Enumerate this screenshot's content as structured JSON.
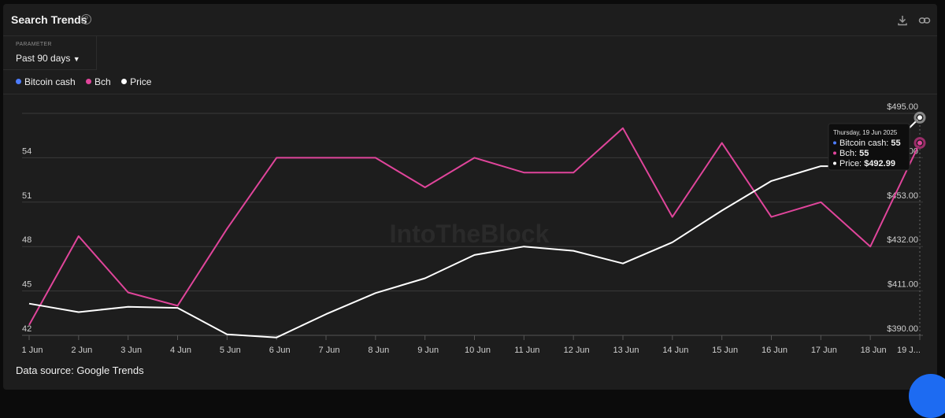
{
  "header": {
    "title": "Search Trends",
    "help_icon": "question-circle-icon",
    "download_icon": "download-icon",
    "link_icon": "link-icon"
  },
  "parameter": {
    "label": "PARAMETER",
    "value": "Past 90 days"
  },
  "legend": [
    {
      "name": "Bitcoin cash",
      "color": "#4d7cff"
    },
    {
      "name": "Bch",
      "color": "#e0459b"
    },
    {
      "name": "Price",
      "color": "#ffffff"
    }
  ],
  "source": "Data source: Google Trends",
  "watermark": "IntoTheBlock",
  "tooltip": {
    "date": "Thursday, 19 Jun 2025",
    "rows": [
      {
        "label": "Bitcoin cash:",
        "value": "55",
        "color": "#4d7cff"
      },
      {
        "label": "Bch:",
        "value": "55",
        "color": "#e0459b"
      },
      {
        "label": "Price:",
        "value": "$492.99",
        "color": "#ffffff"
      }
    ]
  },
  "chart_data": {
    "type": "line",
    "categories": [
      "1 Jun",
      "2 Jun",
      "3 Jun",
      "4 Jun",
      "5 Jun",
      "6 Jun",
      "7 Jun",
      "8 Jun",
      "9 Jun",
      "10 Jun",
      "11 Jun",
      "12 Jun",
      "13 Jun",
      "14 Jun",
      "15 Jun",
      "16 Jun",
      "17 Jun",
      "18 Jun",
      "19 Jun"
    ],
    "x_tick_labels": [
      "1 Jun",
      "2 Jun",
      "3 Jun",
      "4 Jun",
      "5 Jun",
      "6 Jun",
      "7 Jun",
      "8 Jun",
      "9 Jun",
      "10 Jun",
      "11 Jun",
      "12 Jun",
      "13 Jun",
      "14 Jun",
      "15 Jun",
      "16 Jun",
      "17 Jun",
      "18 Jun",
      "19 J..."
    ],
    "y_left": {
      "range": [
        42,
        57
      ],
      "ticks": [
        "42",
        "45",
        "48",
        "51",
        "54"
      ]
    },
    "y_right": {
      "range": [
        390,
        495
      ],
      "ticks": [
        "$390.00",
        "$411.00",
        "$432.00",
        "$453.00",
        "$474.00",
        "$495.00"
      ]
    },
    "series": [
      {
        "name": "Bch",
        "axis": "left",
        "color": "#e0459b",
        "values": [
          42.7,
          48.7,
          44.9,
          44.0,
          49.2,
          54.0,
          54.0,
          54.0,
          52.0,
          54.0,
          53.0,
          53.0,
          56.0,
          50.0,
          55.0,
          50.0,
          51.0,
          48.0,
          55.0
        ]
      },
      {
        "name": "Price",
        "axis": "right",
        "color": "#ffffff",
        "values": [
          405.0,
          401.0,
          403.5,
          403.0,
          390.5,
          389.0,
          400.0,
          410.0,
          417.0,
          428.0,
          432.0,
          430.0,
          424.0,
          434.0,
          449.0,
          463.0,
          470.0,
          470.0,
          492.99
        ]
      }
    ],
    "grid": true,
    "legend_position": "top-left"
  }
}
